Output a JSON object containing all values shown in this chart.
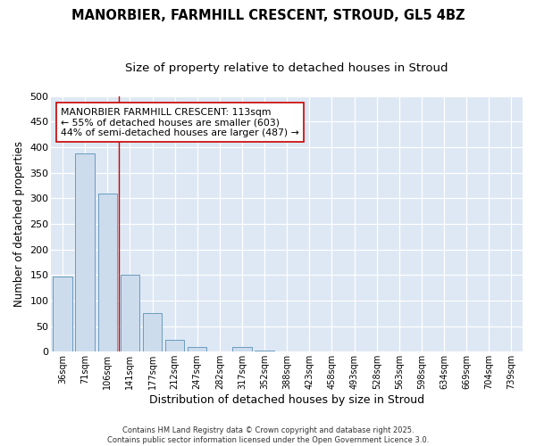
{
  "title_line1": "MANORBIER, FARMHILL CRESCENT, STROUD, GL5 4BZ",
  "title_line2": "Size of property relative to detached houses in Stroud",
  "xlabel": "Distribution of detached houses by size in Stroud",
  "ylabel": "Number of detached properties",
  "categories": [
    "36sqm",
    "71sqm",
    "106sqm",
    "141sqm",
    "177sqm",
    "212sqm",
    "247sqm",
    "282sqm",
    "317sqm",
    "352sqm",
    "388sqm",
    "423sqm",
    "458sqm",
    "493sqm",
    "528sqm",
    "563sqm",
    "598sqm",
    "634sqm",
    "669sqm",
    "704sqm",
    "739sqm"
  ],
  "values": [
    147,
    388,
    310,
    150,
    75,
    23,
    10,
    0,
    10,
    2,
    0,
    0,
    1,
    0,
    0,
    0,
    0,
    0,
    0,
    0,
    1
  ],
  "bar_color": "#ccdcec",
  "bar_edge_color": "#6a9bbf",
  "vline_color": "#cc0000",
  "vline_pos": 2.5,
  "annotation_text": "MANORBIER FARMHILL CRESCENT: 113sqm\n← 55% of detached houses are smaller (603)\n44% of semi-detached houses are larger (487) →",
  "annotation_box_color": "white",
  "annotation_box_edge": "#cc0000",
  "background_color": "#dde8f4",
  "plot_bg_color": "#dde8f4",
  "ylim": [
    0,
    500
  ],
  "yticks": [
    0,
    50,
    100,
    150,
    200,
    250,
    300,
    350,
    400,
    450,
    500
  ],
  "footer": "Contains HM Land Registry data © Crown copyright and database right 2025.\nContains public sector information licensed under the Open Government Licence 3.0.",
  "title_fontsize": 10.5,
  "subtitle_fontsize": 9.5,
  "xlabel_fontsize": 9,
  "ylabel_fontsize": 8.5,
  "annotation_fontsize": 7.8
}
